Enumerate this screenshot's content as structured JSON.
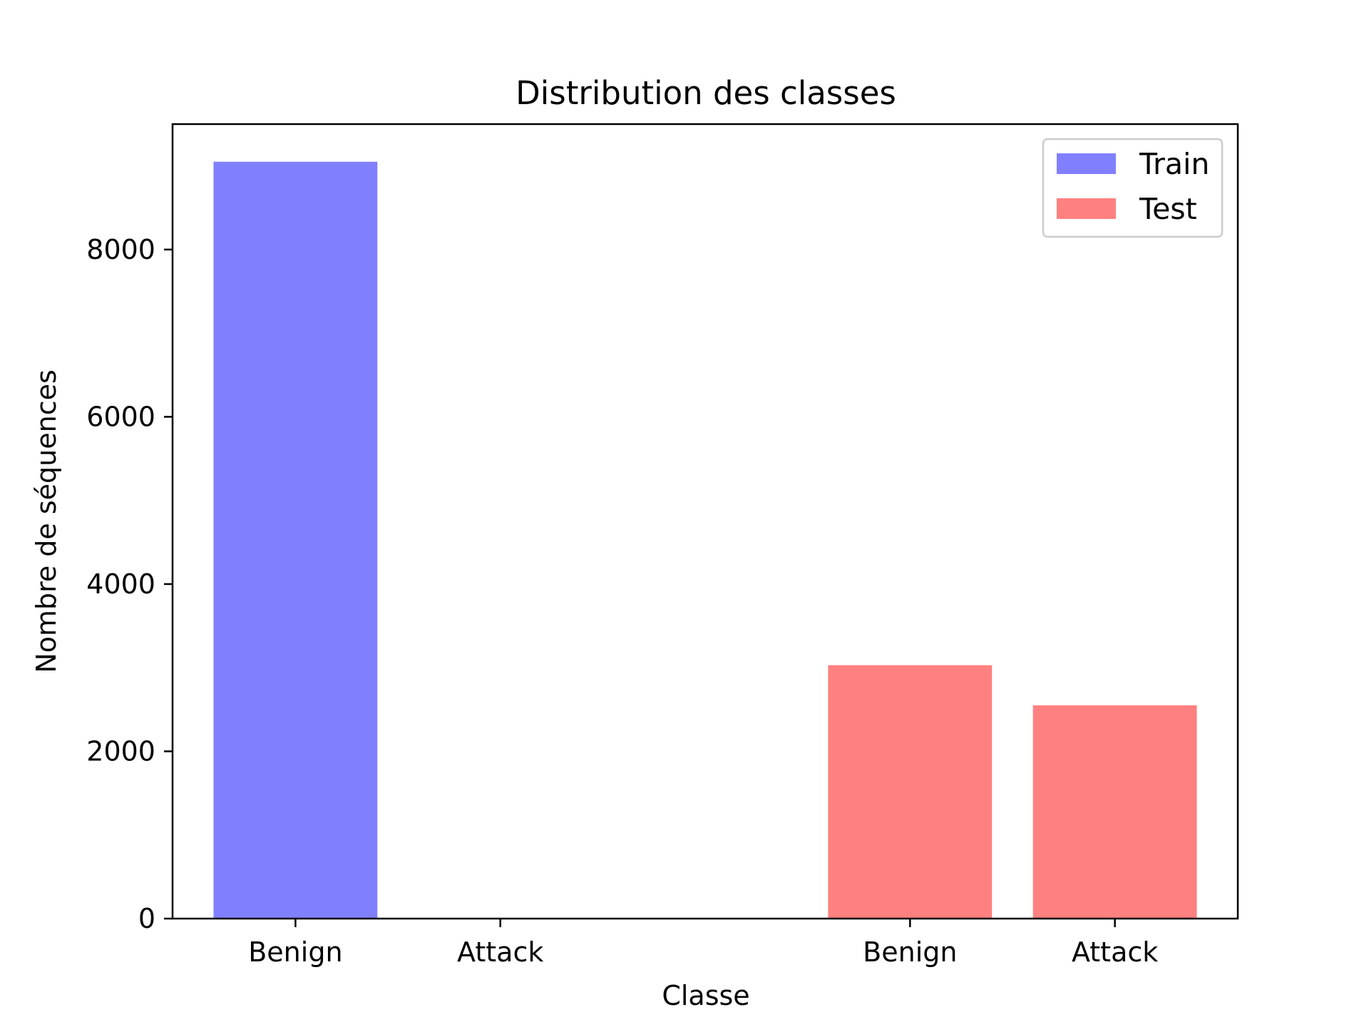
{
  "chart_data": {
    "type": "bar",
    "title": "Distribution des classes",
    "xlabel": "Classe",
    "ylabel": "Nombre de séquences",
    "ylim": [
      0,
      9500
    ],
    "yticks": [
      0,
      2000,
      4000,
      6000,
      8000
    ],
    "x_positions": [
      0,
      1,
      3,
      4
    ],
    "x_tick_labels": [
      "Benign",
      "Attack",
      "Benign",
      "Attack"
    ],
    "grid": false,
    "legend": "top-right",
    "series": [
      {
        "name": "Train",
        "color": "#8080ff",
        "x": [
          0,
          1
        ],
        "values": [
          9050,
          0
        ]
      },
      {
        "name": "Test",
        "color": "#ff8080",
        "x": [
          3,
          4
        ],
        "values": [
          3030,
          2550
        ]
      }
    ]
  }
}
